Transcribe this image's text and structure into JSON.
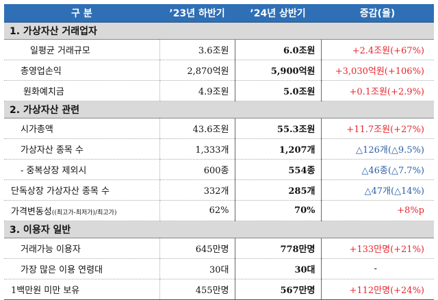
{
  "header": {
    "col1": "구 분",
    "col2": "’23년 하반기",
    "col3": "’24년 상반기",
    "col4": "증감(율)"
  },
  "sections": [
    {
      "title": "1. 가상자산 거래업자",
      "rows": [
        {
          "label": "일평균 거래규모",
          "v23": "3.6조원",
          "v24": "6.0조원",
          "chg": "+2.4조원(+67%)",
          "tone": "red"
        },
        {
          "label": "총영업손익",
          "v23": "2,870억원",
          "v24": "5,900억원",
          "chg": "+3,030억원(+106%)",
          "tone": "red"
        },
        {
          "label": "원화예치금",
          "v23": "4.9조원",
          "v24": "5.0조원",
          "chg": "+0.1조원(+2.9%)",
          "tone": "red"
        }
      ]
    },
    {
      "title": "2. 가상자산 관련",
      "rows": [
        {
          "label": "시가총액",
          "v23": "43.6조원",
          "v24": "55.3조원",
          "chg": "+11.7조원(+27%)",
          "tone": "red"
        },
        {
          "label": "가상자산 종목 수",
          "v23": "1,333개",
          "v24": "1,207개",
          "chg": "△126개(△9.5%)",
          "tone": "blue"
        },
        {
          "label": "- 중복상장 제외시",
          "v23": "600종",
          "v24": "554종",
          "chg": "△46종(△7.7%)",
          "tone": "blue"
        },
        {
          "label": "단독상장 가상자산 종목 수",
          "v23": "332개",
          "v24": "285개",
          "chg": "△47개(△14%)",
          "tone": "blue"
        },
        {
          "label": "가격변동성",
          "label_small": "((최고가-최저가)/최고가)",
          "v23": "62%",
          "v24": "70%",
          "chg": "+8%p",
          "tone": "red"
        }
      ]
    },
    {
      "title": "3. 이용자 일반",
      "rows": [
        {
          "label": "거래가능 이용자",
          "v23": "645만명",
          "v24": "778만명",
          "chg": "+133만명(+21%)",
          "tone": "red"
        },
        {
          "label": "가장 많은 이용 연령대",
          "v23": "30대",
          "v24": "30대",
          "chg": "-",
          "tone": "plain"
        },
        {
          "label": "1백만원 미만 보유",
          "v23": "455만명",
          "v24": "567만명",
          "chg": "+112만명(+24%)",
          "tone": "red"
        }
      ]
    }
  ],
  "colors": {
    "header_bg": "#2f6fb5",
    "section_bg": "#d9d9d9",
    "increase": "#e8242a",
    "decrease": "#2a5ea8"
  }
}
